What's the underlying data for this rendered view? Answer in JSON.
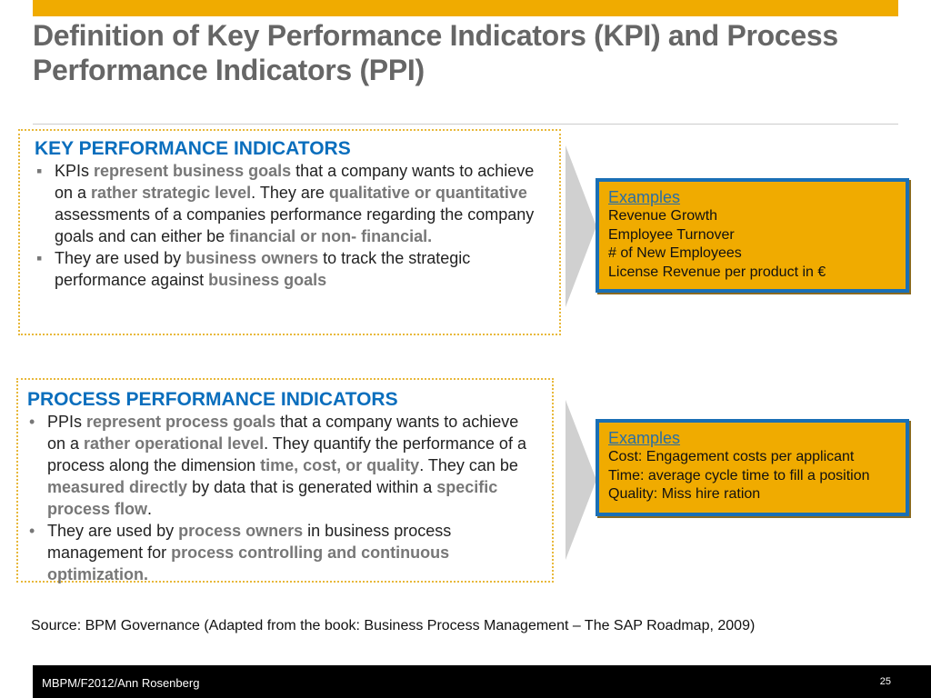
{
  "title": "Definition of Key Performance Indicators (KPI) and Process Performance Indicators (PPI)",
  "kpi": {
    "heading": "KEY PERFORMANCE INDICATORS",
    "bullets": [
      [
        {
          "t": "KPIs "
        },
        {
          "t": "represent business goals",
          "hl": true
        },
        {
          "t": " that a company wants to achieve on a "
        },
        {
          "t": "rather strategic level",
          "hl": true
        },
        {
          "t": ". They are "
        },
        {
          "t": "qualitative or quantitative",
          "hl": true
        },
        {
          "t": " assessments of a companies performance regarding the company goals and can either be "
        },
        {
          "t": "financial or non- financial",
          "hl": true
        },
        {
          "t": ".",
          "hl": true
        }
      ],
      [
        {
          "t": "They are used by "
        },
        {
          "t": "business owners",
          "hl": true
        },
        {
          "t": " to track the strategic performance against "
        },
        {
          "t": "business goals",
          "hl": true
        }
      ]
    ],
    "examples_heading": "Examples",
    "examples": [
      "Revenue Growth",
      "Employee Turnover",
      "# of New Employees",
      "License Revenue per product in €"
    ]
  },
  "ppi": {
    "heading": "PROCESS PERFORMANCE INDICATORS",
    "bullets": [
      [
        {
          "t": "PPIs "
        },
        {
          "t": "represent process goals",
          "hl": true
        },
        {
          "t": " that a company wants to achieve on a "
        },
        {
          "t": "rather operational level",
          "hl": true
        },
        {
          "t": ". They quantify the performance of a process along the dimension "
        },
        {
          "t": "time, cost, or quality",
          "hl": true
        },
        {
          "t": ". They can be "
        },
        {
          "t": "measured directly",
          "hl": true
        },
        {
          "t": " by data that is generated within a "
        },
        {
          "t": "specific process flow",
          "hl": true
        },
        {
          "t": "."
        }
      ],
      [
        {
          "t": "They are used by "
        },
        {
          "t": "process owners",
          "hl": true
        },
        {
          "t": " in business process management for "
        },
        {
          "t": "process controlling and continuous optimization.",
          "hl": true
        }
      ]
    ],
    "examples_heading": "Examples",
    "examples": [
      "Cost: Engagement costs per applicant",
      "Time: average cycle time to fill a position",
      "Quality: Miss hire ration"
    ]
  },
  "source": "Source: BPM Governance  (Adapted from the book: Business Process Management – The SAP Roadmap, 2009)",
  "footer": {
    "author": "MBPM/F2012/Ann Rosenberg",
    "page": "25"
  }
}
